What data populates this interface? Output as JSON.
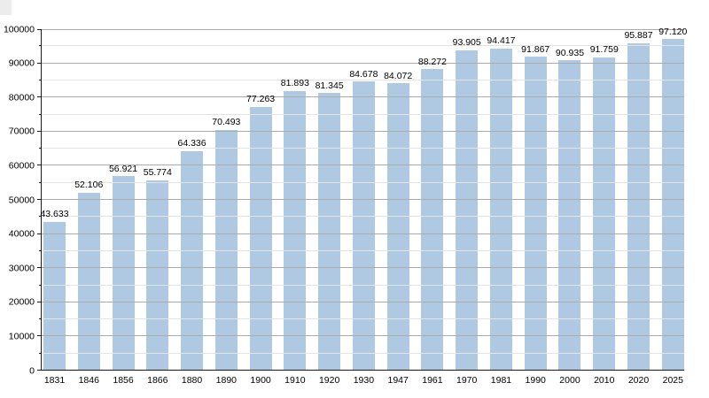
{
  "chart": {
    "background_color": "#ffffff",
    "bar_color": "#afc9e2",
    "grid_major_color": "#ababab",
    "grid_minor_color": "#e4e4e4",
    "axis_color": "#1a1a1a",
    "text_color": "#000000"
  },
  "chart_data": {
    "type": "bar",
    "title": "",
    "xlabel": "",
    "ylabel": "",
    "categories": [
      "1831",
      "1846",
      "1856",
      "1866",
      "1880",
      "1890",
      "1900",
      "1910",
      "1920",
      "1930",
      "1947",
      "1961",
      "1970",
      "1981",
      "1990",
      "2000",
      "2010",
      "2020",
      "2025"
    ],
    "values": [
      43633,
      52106,
      56921,
      55774,
      64336,
      70493,
      77263,
      81893,
      81345,
      84678,
      84072,
      88272,
      93905,
      94417,
      91867,
      90935,
      91759,
      95887,
      97120
    ],
    "value_labels": [
      "43.633",
      "52.106",
      "56.921",
      "55.774",
      "64.336",
      "70.493",
      "77.263",
      "81.893",
      "81.345",
      "84.678",
      "84.072",
      "88.272",
      "93.905",
      "94.417",
      "91.867",
      "90.935",
      "91.759",
      "95.887",
      "97.120"
    ],
    "ylim": [
      0,
      100000
    ],
    "y_major_step": 10000,
    "y_minor_step": 5000,
    "y_tick_labels": [
      "0",
      "10000",
      "20000",
      "30000",
      "40000",
      "50000",
      "60000",
      "70000",
      "80000",
      "90000",
      "100000"
    ],
    "grid": "major and minor horizontal gridlines",
    "legend_position": "none"
  }
}
